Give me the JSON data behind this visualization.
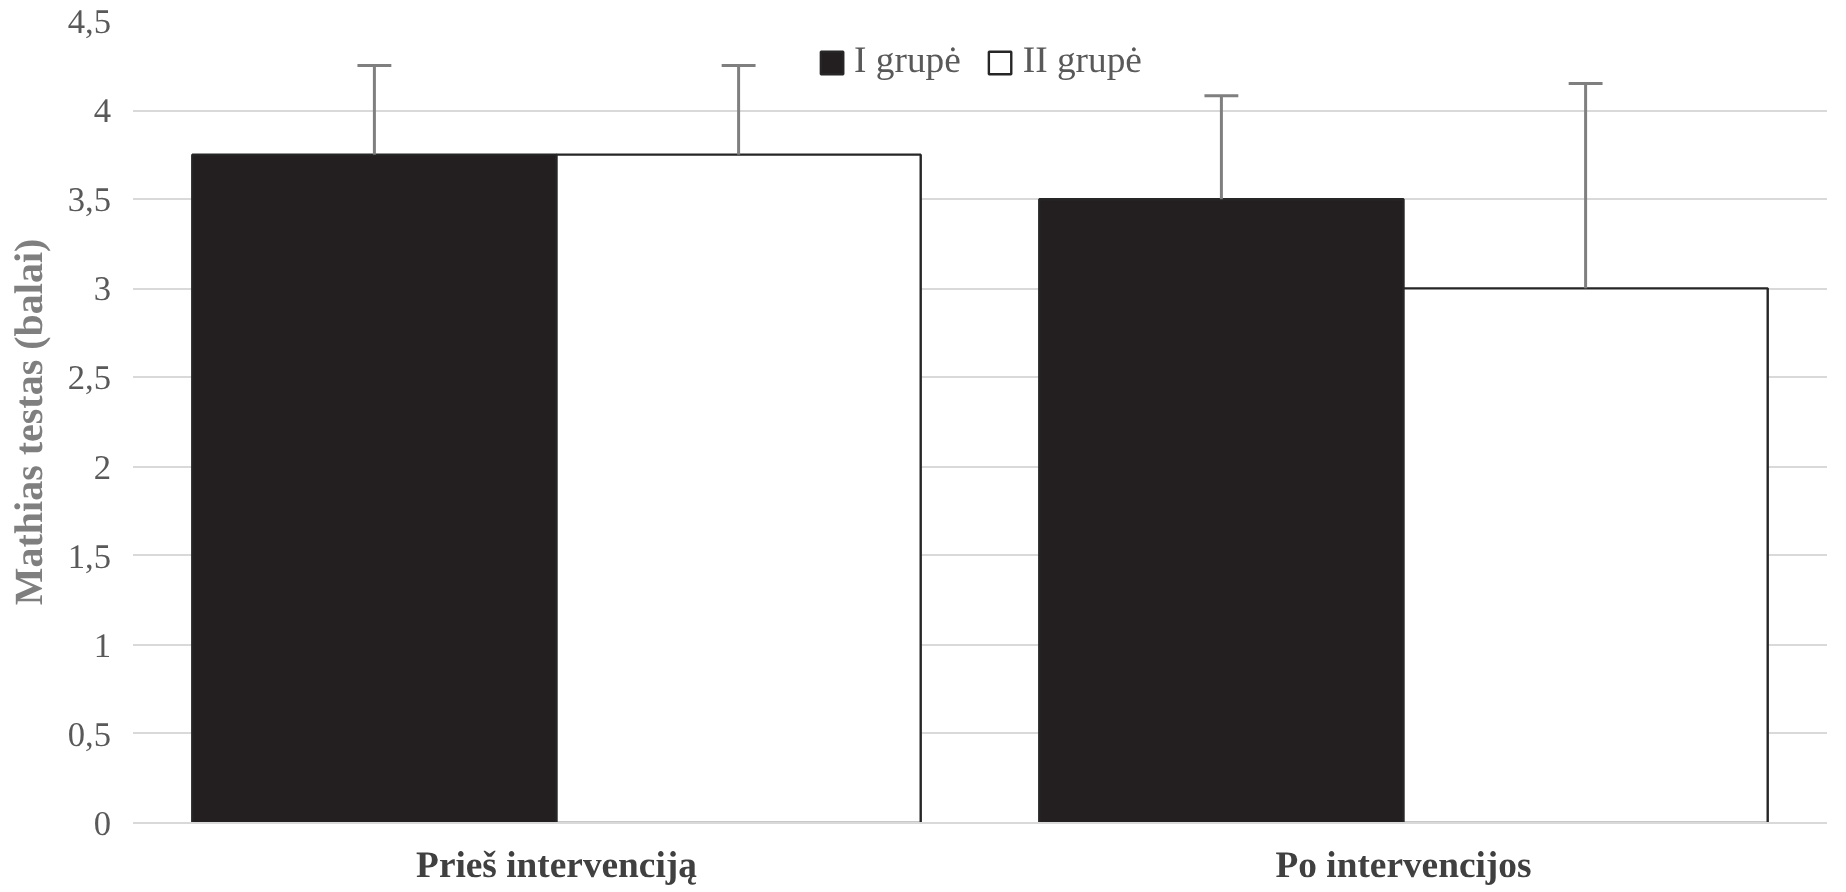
{
  "chart_data": {
    "type": "bar",
    "ylabel": "Mathias testas (balai)",
    "categories": [
      "Prieš intervenciją",
      "Po intervencijos"
    ],
    "series": [
      {
        "name": "I grupė",
        "color": "#231f20",
        "values": [
          3.75,
          3.5
        ],
        "errors": [
          [
            3.75,
            4.25
          ],
          [
            3.5,
            4.08
          ]
        ]
      },
      {
        "name": "II grupė",
        "color": "#ffffff",
        "values": [
          3.75,
          3.0
        ],
        "errors": [
          [
            3.75,
            4.25
          ],
          [
            3.0,
            4.15
          ]
        ]
      }
    ],
    "ylim": [
      0,
      4.5
    ],
    "yticks": [
      0,
      {
        "value": 0.5,
        "label": "0,5"
      },
      1,
      {
        "value": 1.5,
        "label": "1,5"
      },
      2,
      {
        "value": 2.5,
        "label": "2,5"
      },
      3,
      {
        "value": 3.5,
        "label": "3,5"
      },
      4,
      {
        "value": 4.5,
        "label": "4,5"
      }
    ],
    "grid": "y",
    "legend": "top"
  }
}
